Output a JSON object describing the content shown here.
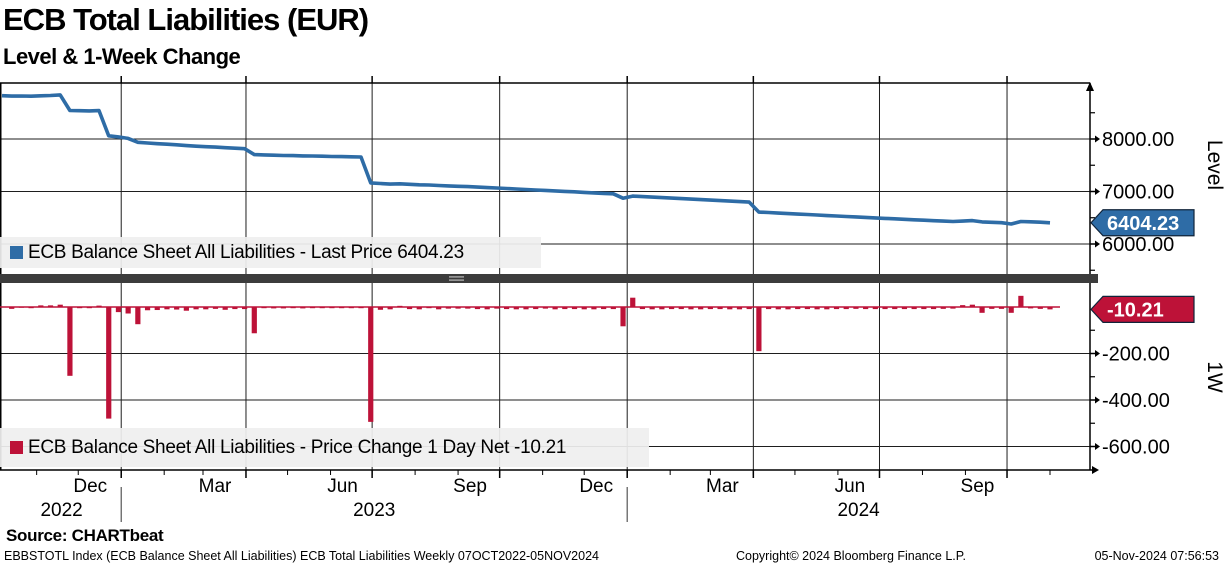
{
  "header": {
    "title": "ECB Total Liabilities (EUR)",
    "subtitle": "Level & 1-Week Change"
  },
  "colors": {
    "line_blue": "#2e6ca6",
    "bar_red": "#bd1238",
    "tag_text": "#ffffff",
    "divider": "#3c3c3c",
    "divider_grip": "#aaaaaa",
    "legend_bg": "#f0f0f0",
    "grid": "#1e1e1e",
    "axis": "#000000"
  },
  "top_panel": {
    "legend_label": "ECB Balance Sheet All Liabilities - Last Price 6404.23",
    "axis_title": "Level",
    "tag": "6404.23",
    "yticks": [
      {
        "v": 8000,
        "label": "8000.00"
      },
      {
        "v": 7000,
        "label": "7000.00"
      },
      {
        "v": 6000,
        "label": "6000.00"
      }
    ],
    "minor_yticks": [
      8500,
      7500,
      6500,
      5500
    ]
  },
  "bottom_panel": {
    "legend_label": "ECB Balance Sheet All Liabilities - Price Change 1 Day Net -10.21",
    "axis_title": "1W",
    "tag": "-10.21",
    "yticks": [
      {
        "v": -200,
        "label": "-200.00"
      },
      {
        "v": -400,
        "label": "-400.00"
      },
      {
        "v": -600,
        "label": "-600.00"
      }
    ],
    "minor_yticks": [
      -100,
      -300,
      -500
    ]
  },
  "x_axis": {
    "month_labels": [
      {
        "label": "Dec",
        "date": "2022-12-01"
      },
      {
        "label": "Mar",
        "date": "2023-03-01"
      },
      {
        "label": "Jun",
        "date": "2023-06-01"
      },
      {
        "label": "Sep",
        "date": "2023-09-01"
      },
      {
        "label": "Dec",
        "date": "2023-12-01"
      },
      {
        "label": "Mar",
        "date": "2024-03-01"
      },
      {
        "label": "Jun",
        "date": "2024-06-01"
      },
      {
        "label": "Sep",
        "date": "2024-09-01"
      }
    ],
    "year_separators": [
      "2023-01-01",
      "2024-01-01"
    ],
    "year_labels": [
      "2022",
      "2023",
      "2024"
    ],
    "quarter_gridlines": [
      "2023-01-01",
      "2023-04-01",
      "2023-07-01",
      "2023-10-01",
      "2024-01-01",
      "2024-04-01",
      "2024-07-01",
      "2024-10-01"
    ]
  },
  "chart_data": [
    {
      "type": "line",
      "name": "ECB Balance Sheet All Liabilities - Last Price",
      "ylabel": "Level",
      "frequency": "weekly",
      "start_date": "2022-10-07",
      "end_date": "2024-11-05",
      "start_value": 8825.44,
      "last_value": 6404.23,
      "ylim": [
        5650,
        9070
      ],
      "yticks": [
        6000,
        7000,
        8000
      ],
      "weekly_changes": [
        -8,
        2,
        -4,
        7,
        7,
        10,
        -296,
        -4,
        -4,
        6,
        -480,
        -22,
        -28,
        -74,
        -14,
        -13,
        -10,
        -11,
        -16,
        -10,
        -10,
        -8,
        -12,
        -9,
        -9,
        -113,
        -5,
        -6,
        -6,
        -2,
        -6,
        -2,
        -4,
        -4,
        -2,
        -4,
        -4,
        -494,
        -12,
        -10,
        5,
        -9,
        -10,
        -4,
        -10,
        -7,
        -7,
        -7,
        -9,
        -10,
        -7,
        -9,
        -10,
        -10,
        -9,
        -7,
        -10,
        -9,
        -9,
        -10,
        -10,
        -9,
        -9,
        -83,
        40,
        -9,
        -10,
        -10,
        -9,
        -9,
        -10,
        -10,
        -9,
        -9,
        -10,
        -10,
        -9,
        -190,
        -9,
        -10,
        -10,
        -9,
        -9,
        -10,
        -10,
        -9,
        -9,
        -8,
        -9,
        -9,
        -9,
        -9,
        -9,
        -9,
        -9,
        -9,
        -8,
        -7,
        8,
        10,
        -25,
        -8,
        -8,
        -25,
        48,
        -6,
        -8,
        -10.21
      ]
    },
    {
      "type": "bar",
      "name": "ECB Balance Sheet All Liabilities - Price Change 1 Day Net",
      "ylabel": "1W",
      "frequency": "weekly",
      "values_note": "same weekly_changes as line series above",
      "last_value": -10.21,
      "ylim": [
        -700,
        95
      ],
      "yticks": [
        -600,
        -400,
        -200
      ]
    }
  ],
  "footer": {
    "source": "Source: CHARTbeat",
    "left": "EBBSTOTL Index (ECB Balance Sheet All Liabilities) ECB Total Liabilities  Weekly 07OCT2022-05NOV2024",
    "center": "Copyright© 2024 Bloomberg Finance L.P.",
    "right": "05-Nov-2024 07:56:53"
  }
}
